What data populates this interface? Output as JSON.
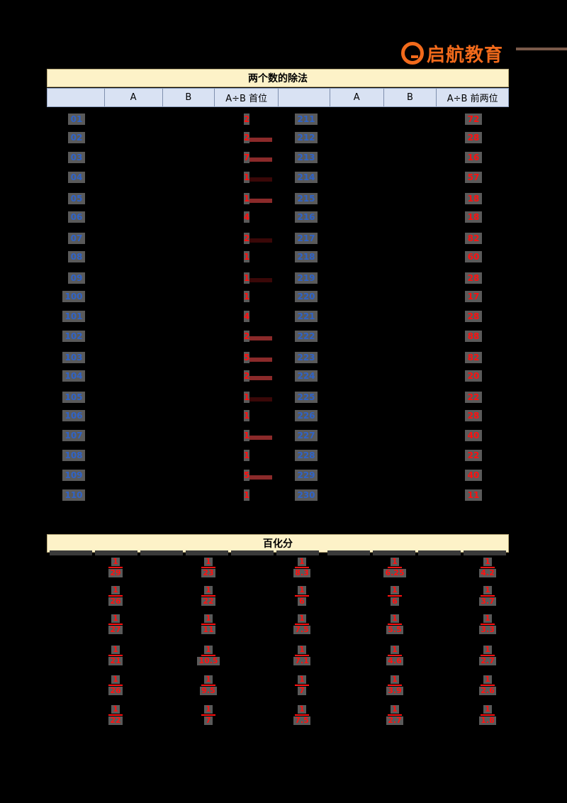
{
  "brand": {
    "logo_text": "启航教育",
    "accent": "#f26a1b"
  },
  "division": {
    "title": "两个数的除法",
    "headers": [
      "",
      "A",
      "B",
      "A÷B 首位",
      "",
      "A",
      "B",
      "A÷B 前两位"
    ],
    "left_rows": [
      {
        "no": "01",
        "first": "2"
      },
      {
        "no": "02",
        "first": "2"
      },
      {
        "no": "03",
        "first": "7"
      },
      {
        "no": "04",
        "first": "1"
      },
      {
        "no": "05",
        "first": "1"
      },
      {
        "no": "06",
        "first": "4"
      },
      {
        "no": "07",
        "first": "2"
      },
      {
        "no": "08",
        "first": "1"
      },
      {
        "no": "09",
        "first": "1"
      },
      {
        "no": "100",
        "first": "1"
      },
      {
        "no": "101",
        "first": "4"
      },
      {
        "no": "102",
        "first": "2"
      },
      {
        "no": "103",
        "first": "5"
      },
      {
        "no": "104",
        "first": "2"
      },
      {
        "no": "105",
        "first": "1"
      },
      {
        "no": "106",
        "first": "1"
      },
      {
        "no": "107",
        "first": "1"
      },
      {
        "no": "108",
        "first": "1"
      },
      {
        "no": "109",
        "first": "5"
      },
      {
        "no": "110",
        "first": "1"
      }
    ],
    "right_rows": [
      {
        "no": "211",
        "first_two": "72"
      },
      {
        "no": "212",
        "first_two": "28"
      },
      {
        "no": "213",
        "first_two": "16"
      },
      {
        "no": "214",
        "first_two": "57"
      },
      {
        "no": "215",
        "first_two": "18"
      },
      {
        "no": "216",
        "first_two": "18"
      },
      {
        "no": "217",
        "first_two": "82"
      },
      {
        "no": "218",
        "first_two": "60"
      },
      {
        "no": "219",
        "first_two": "28"
      },
      {
        "no": "220",
        "first_two": "17"
      },
      {
        "no": "221",
        "first_two": "28"
      },
      {
        "no": "222",
        "first_two": "88"
      },
      {
        "no": "223",
        "first_two": "82"
      },
      {
        "no": "224",
        "first_two": "20"
      },
      {
        "no": "225",
        "first_two": "22"
      },
      {
        "no": "226",
        "first_two": "28"
      },
      {
        "no": "227",
        "first_two": "40"
      },
      {
        "no": "228",
        "first_two": "22"
      },
      {
        "no": "229",
        "first_two": "40"
      },
      {
        "no": "230",
        "first_two": "11"
      }
    ]
  },
  "percent": {
    "title": "百化分",
    "columns": [
      [
        {
          "n": "1",
          "d": "29"
        },
        {
          "n": "1",
          "d": "26"
        },
        {
          "n": "1",
          "d": "27"
        },
        {
          "n": "1",
          "d": "21"
        },
        {
          "n": "1",
          "d": "26"
        },
        {
          "n": "1",
          "d": "22"
        }
      ],
      [
        {
          "n": "1",
          "d": "23"
        },
        {
          "n": "1",
          "d": "22"
        },
        {
          "n": "1",
          "d": "11"
        },
        {
          "n": "1",
          "d": "10.5"
        },
        {
          "n": "1",
          "d": "9.5"
        },
        {
          "n": "1",
          "d": "7"
        }
      ],
      [
        {
          "n": "1",
          "d": "8.3"
        },
        {
          "n": "1",
          "d": "6"
        },
        {
          "n": "1",
          "d": "7.5"
        },
        {
          "n": "1",
          "d": "7.1"
        },
        {
          "n": "1",
          "d": "7"
        },
        {
          "n": "1",
          "d": "7.5"
        }
      ],
      [
        {
          "n": "1",
          "d": "6.25"
        },
        {
          "n": "1",
          "d": "6"
        },
        {
          "n": "1",
          "d": "5.5"
        },
        {
          "n": "1",
          "d": "4.6"
        },
        {
          "n": "1",
          "d": "3.9"
        },
        {
          "n": "1",
          "d": "2.7"
        }
      ],
      [
        {
          "n": "1",
          "d": "4.2"
        },
        {
          "n": "1",
          "d": "3.7"
        },
        {
          "n": "1",
          "d": "3.3"
        },
        {
          "n": "1",
          "d": "2.7"
        },
        {
          "n": "1",
          "d": "2.6"
        },
        {
          "n": "1",
          "d": "1.8"
        }
      ]
    ]
  }
}
